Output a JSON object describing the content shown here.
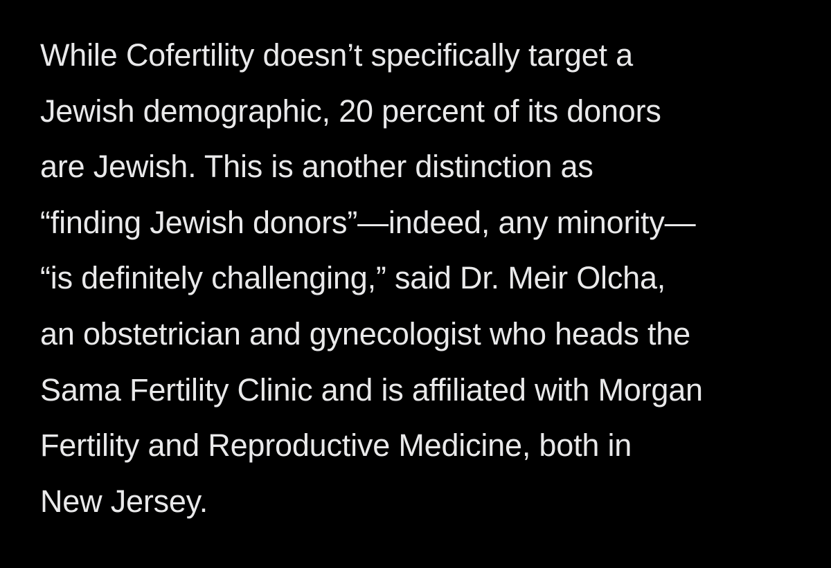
{
  "article": {
    "paragraph_lines": [
      "While Cofertility doesn’t specifically target a",
      "Jewish demographic, 20 percent of its donors",
      "are Jewish. This is another distinction as",
      "“finding Jewish donors”—indeed, any minority—",
      "“is definitely challenging,” said Dr. Meir Olcha,",
      "an obstetrician and gynecologist who heads the",
      "Sama Fertility Clinic and is affiliated with Morgan",
      "Fertility and Reproductive Medicine, both in",
      "New Jersey."
    ]
  },
  "colors": {
    "background": "#000000",
    "text": "#e9e9ea"
  }
}
